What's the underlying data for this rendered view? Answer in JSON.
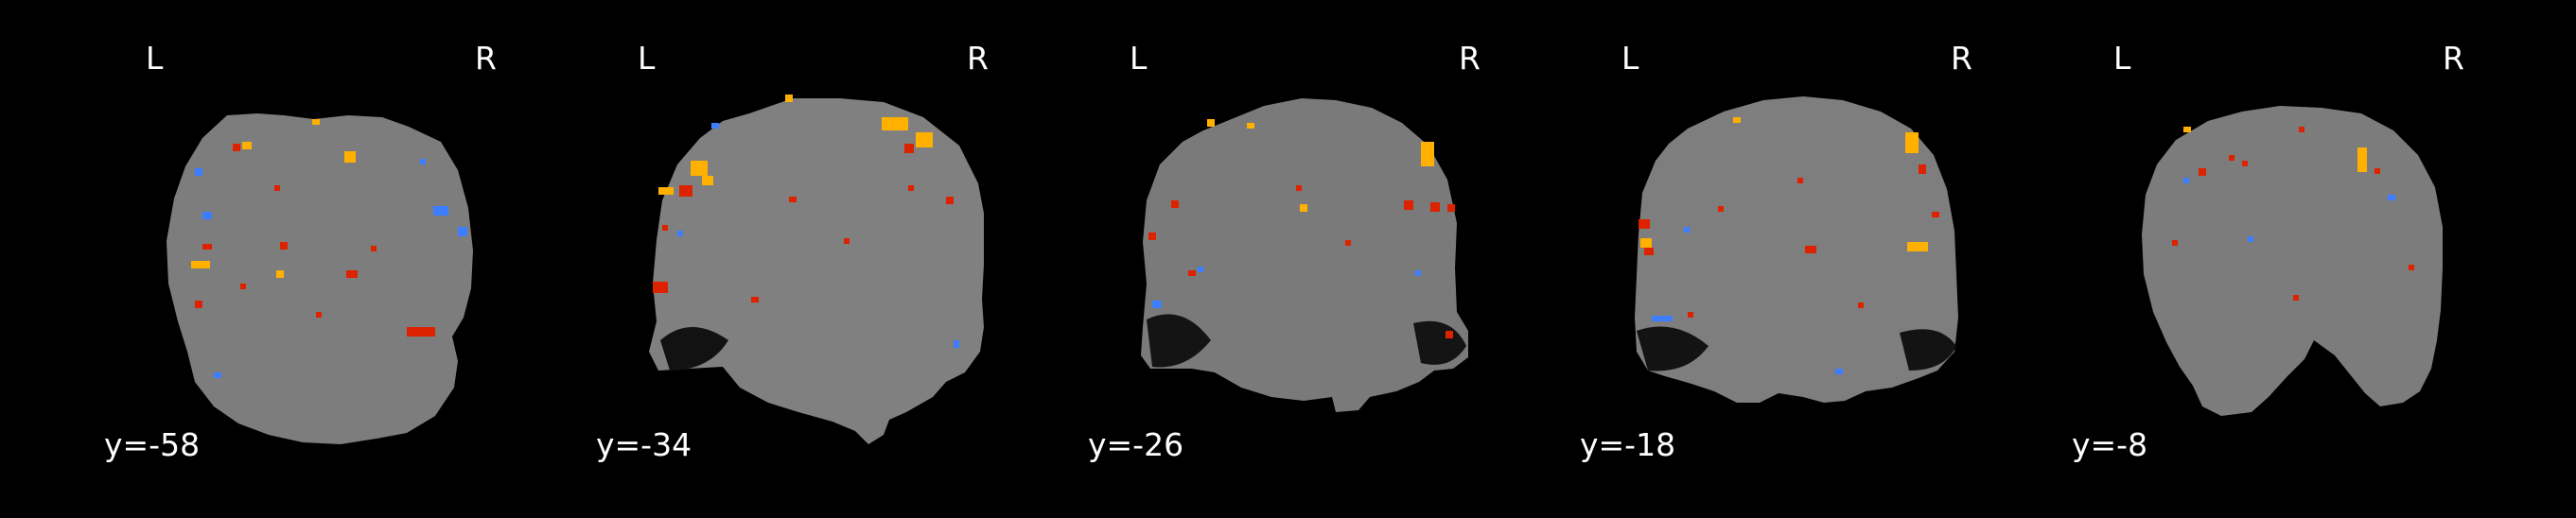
{
  "viewer": {
    "background_color": "#000000",
    "text_color": "#ffffff",
    "overlay_colors": {
      "positive_low": "#cc1100",
      "positive_mid": "#ff5500",
      "positive_high": "#ffee33",
      "negative_low": "#2255ee",
      "negative_high": "#33bbff"
    }
  },
  "slices": [
    {
      "orientation_left": "L",
      "orientation_right": "R",
      "coordinate": "y=-58"
    },
    {
      "orientation_left": "L",
      "orientation_right": "R",
      "coordinate": "y=-34"
    },
    {
      "orientation_left": "L",
      "orientation_right": "R",
      "coordinate": "y=-26"
    },
    {
      "orientation_left": "L",
      "orientation_right": "R",
      "coordinate": "y=-18"
    },
    {
      "orientation_left": "L",
      "orientation_right": "R",
      "coordinate": "y=-8"
    }
  ]
}
